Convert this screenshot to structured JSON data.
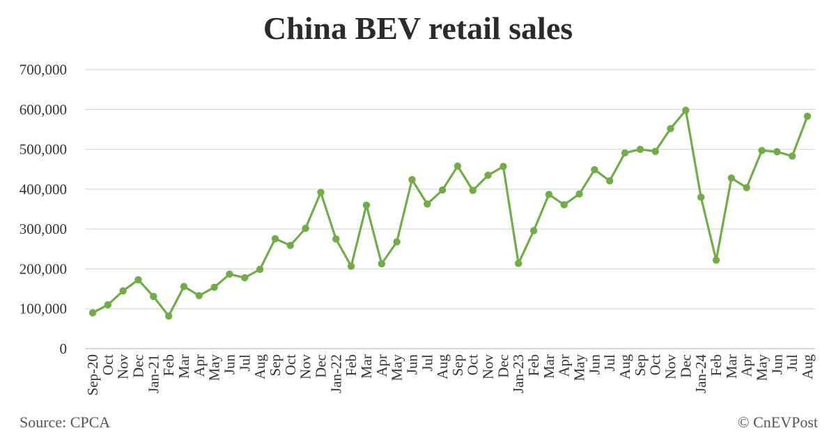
{
  "chart_data": {
    "type": "line",
    "title": "China BEV retail sales",
    "xlabel": "",
    "ylabel": "",
    "ylim": [
      0,
      700000
    ],
    "y_ticks": [
      "0",
      "100,000",
      "200,000",
      "300,000",
      "400,000",
      "500,000",
      "600,000",
      "700,000"
    ],
    "grid": true,
    "legend": "none",
    "color": "#70ad47",
    "categories": [
      "Sep-20",
      "Oct",
      "Nov",
      "Dec",
      "Jan-21",
      "Feb",
      "Mar",
      "Apr",
      "May",
      "Jun",
      "Jul",
      "Aug",
      "Sep",
      "Oct",
      "Nov",
      "Dec",
      "Jan-22",
      "Feb",
      "Mar",
      "Apr",
      "May",
      "Jun",
      "Jul",
      "Aug",
      "Sep",
      "Oct",
      "Nov",
      "Dec",
      "Jan-23",
      "Feb",
      "Mar",
      "Apr",
      "May",
      "Jun",
      "Jul",
      "Aug",
      "Sep",
      "Oct",
      "Nov",
      "Dec",
      "Jan-24",
      "Feb",
      "Mar",
      "Apr",
      "May",
      "Jun",
      "Jul",
      "Aug"
    ],
    "series": [
      {
        "values": [
          90000,
          110000,
          145000,
          173000,
          131000,
          82000,
          156000,
          133000,
          154000,
          187000,
          178000,
          199000,
          276000,
          259000,
          302000,
          392000,
          275000,
          207000,
          360000,
          213000,
          268000,
          424000,
          363000,
          398000,
          458000,
          397000,
          435000,
          457000,
          214000,
          296000,
          387000,
          361000,
          388000,
          449000,
          421000,
          491000,
          500000,
          495000,
          552000,
          598000,
          380000,
          222000,
          428000,
          404000,
          497000,
          494000,
          483000,
          583000
        ]
      }
    ]
  },
  "footer": {
    "source": "Source: CPCA",
    "credit": "© CnEVPost"
  }
}
